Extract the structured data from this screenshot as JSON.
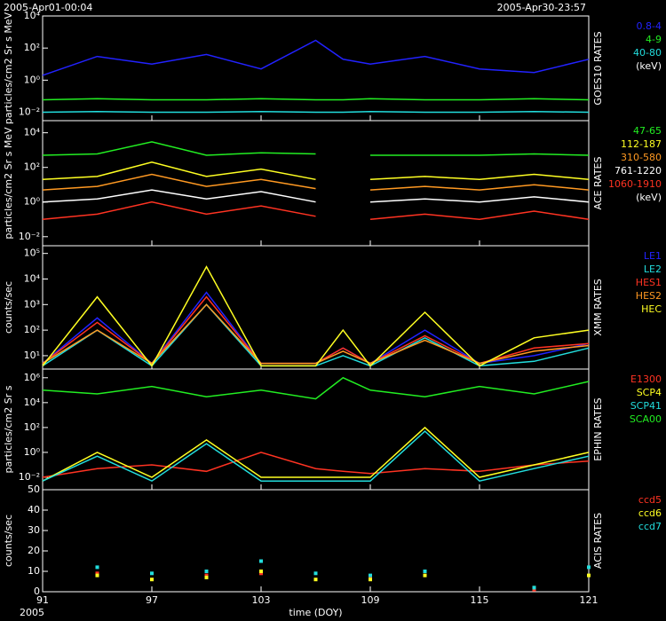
{
  "header": {
    "start": "2005-Apr01-00:04",
    "end": "2005-Apr30-23:57"
  },
  "footer": {
    "year": "2005"
  },
  "chart_data": [
    {
      "type": "line",
      "title": "GOES10 RATES",
      "ylabel": "particles/cm2 Sr s MeV",
      "unit": "(keV)",
      "log": true,
      "xlim": [
        91,
        121
      ],
      "xticks": [
        91,
        97,
        103,
        109,
        115,
        121
      ],
      "ylim": [
        0.003,
        10000
      ],
      "yticks": [
        {
          "value": 0.01,
          "label": "10⁻²"
        },
        {
          "value": 1,
          "label": "10⁰"
        },
        {
          "value": 100,
          "label": "10²"
        },
        {
          "value": 10000,
          "label": "10⁴"
        }
      ],
      "x": [
        91,
        94,
        97,
        100,
        103,
        106,
        107.5,
        109,
        112,
        115,
        118,
        121
      ],
      "series": [
        {
          "name": "0.8-4",
          "color": "#2222ff",
          "values": [
            2,
            30,
            10,
            40,
            5,
            300,
            20,
            10,
            30,
            5,
            3,
            20
          ]
        },
        {
          "name": "4-9",
          "color": "#22ee22",
          "values": [
            0.06,
            0.07,
            0.06,
            0.06,
            0.07,
            0.06,
            0.06,
            0.07,
            0.06,
            0.06,
            0.07,
            0.06
          ]
        },
        {
          "name": "40-80",
          "color": "#22dddd",
          "values": [
            0.01,
            0.011,
            0.01,
            0.01,
            0.011,
            0.01,
            0.01,
            0.011,
            0.01,
            0.01,
            0.011,
            0.01
          ]
        }
      ]
    },
    {
      "type": "line",
      "title": "ACE RATES",
      "ylabel": "particles/cm2 Sr s MeV",
      "unit": "(keV)",
      "log": true,
      "xlim": [
        91,
        121
      ],
      "xticks": [
        91,
        97,
        103,
        109,
        115,
        121
      ],
      "ylim": [
        0.003,
        50000
      ],
      "yticks": [
        {
          "value": 0.01,
          "label": "10⁻²"
        },
        {
          "value": 1,
          "label": "10⁰"
        },
        {
          "value": 100,
          "label": "10²"
        },
        {
          "value": 10000,
          "label": "10⁴"
        }
      ],
      "x": [
        91,
        94,
        97,
        100,
        103,
        106,
        107.5,
        109,
        112,
        115,
        118,
        121
      ],
      "series": [
        {
          "name": "47-65",
          "color": "#22ee22",
          "values": [
            500,
            600,
            3000,
            500,
            700,
            600,
            null,
            500,
            500,
            500,
            600,
            500
          ]
        },
        {
          "name": "112-187",
          "color": "#ffff22",
          "values": [
            20,
            30,
            200,
            30,
            80,
            20,
            null,
            20,
            30,
            20,
            40,
            20
          ]
        },
        {
          "name": "310-580",
          "color": "#ff9922",
          "values": [
            5,
            8,
            40,
            8,
            20,
            6,
            null,
            5,
            8,
            5,
            10,
            5
          ]
        },
        {
          "name": "761-1220",
          "color": "#ffffff",
          "values": [
            1,
            1.5,
            5,
            1.5,
            4,
            1,
            null,
            1,
            1.5,
            1,
            2,
            1
          ]
        },
        {
          "name": "1060-1910",
          "color": "#ff3322",
          "values": [
            0.1,
            0.2,
            1,
            0.2,
            0.6,
            0.15,
            null,
            0.1,
            0.2,
            0.1,
            0.3,
            0.1
          ]
        }
      ]
    },
    {
      "type": "line",
      "title": "XMM RATES",
      "ylabel": "counts/sec",
      "log": true,
      "xlim": [
        91,
        121
      ],
      "xticks": [
        91,
        97,
        103,
        109,
        115,
        121
      ],
      "ylim": [
        3,
        200000
      ],
      "yticks": [
        {
          "value": 10,
          "label": "10¹"
        },
        {
          "value": 100,
          "label": "10²"
        },
        {
          "value": 1000,
          "label": "10³"
        },
        {
          "value": 10000,
          "label": "10⁴"
        },
        {
          "value": 100000,
          "label": "10⁵"
        }
      ],
      "x": [
        91,
        94,
        97,
        100,
        103,
        106,
        107.5,
        109,
        112,
        115,
        118,
        121
      ],
      "series": [
        {
          "name": "LE1",
          "color": "#2222ff",
          "values": [
            5,
            300,
            5,
            3000,
            5,
            5,
            20,
            5,
            100,
            5,
            10,
            30
          ]
        },
        {
          "name": "LE2",
          "color": "#22dddd",
          "values": [
            4,
            100,
            4,
            1000,
            4,
            4,
            10,
            4,
            50,
            4,
            6,
            20
          ]
        },
        {
          "name": "HES1",
          "color": "#ff3322",
          "values": [
            5,
            200,
            5,
            2000,
            5,
            5,
            20,
            5,
            60,
            5,
            20,
            30
          ]
        },
        {
          "name": "HES2",
          "color": "#ff9922",
          "values": [
            5,
            100,
            5,
            1000,
            5,
            5,
            15,
            5,
            40,
            5,
            15,
            25
          ]
        },
        {
          "name": "HEC",
          "color": "#ffff22",
          "values": [
            4,
            2000,
            4,
            30000,
            4,
            4,
            100,
            4,
            500,
            4,
            50,
            100
          ]
        }
      ]
    },
    {
      "type": "line",
      "title": "EPHIN RATES",
      "ylabel": "particles/cm2 Sr s",
      "log": true,
      "xlim": [
        91,
        121
      ],
      "xticks": [
        91,
        97,
        103,
        109,
        115,
        121
      ],
      "ylim": [
        0.001,
        5000000
      ],
      "yticks": [
        {
          "value": 0.01,
          "label": "10⁻²"
        },
        {
          "value": 1,
          "label": "10⁰"
        },
        {
          "value": 100,
          "label": "10²"
        },
        {
          "value": 10000,
          "label": "10⁴"
        },
        {
          "value": 1000000,
          "label": "10⁶"
        }
      ],
      "x": [
        91,
        94,
        97,
        100,
        103,
        106,
        107.5,
        109,
        112,
        115,
        118,
        121
      ],
      "series": [
        {
          "name": "E1300",
          "color": "#ff3322",
          "values": [
            0.01,
            0.05,
            0.1,
            0.03,
            1,
            0.05,
            0.03,
            0.02,
            0.05,
            0.03,
            0.1,
            0.2
          ]
        },
        {
          "name": "SCP4",
          "color": "#ffff22",
          "values": [
            0.005,
            1,
            0.01,
            10,
            0.01,
            0.01,
            0.01,
            0.01,
            100,
            0.01,
            0.1,
            1
          ]
        },
        {
          "name": "SCP41",
          "color": "#22dddd",
          "values": [
            0.005,
            0.5,
            0.005,
            5,
            0.005,
            0.005,
            0.005,
            0.005,
            50,
            0.005,
            0.05,
            0.5
          ]
        },
        {
          "name": "SCA00",
          "color": "#22ee22",
          "values": [
            100000,
            50000,
            200000,
            30000,
            100000,
            20000,
            1000000,
            100000,
            30000,
            200000,
            50000,
            500000
          ]
        }
      ]
    },
    {
      "type": "scatter",
      "title": "ACIS RATES",
      "ylabel": "counts/sec",
      "xlabel": "time (DOY)",
      "log": false,
      "xlim": [
        91,
        121
      ],
      "xticks": [
        91,
        97,
        103,
        109,
        115,
        121
      ],
      "ylim": [
        0,
        50
      ],
      "yticks": [
        0,
        10,
        20,
        30,
        40,
        50
      ],
      "x": [
        91,
        94,
        97,
        100,
        103,
        106,
        107.5,
        109,
        112,
        115,
        118,
        121
      ],
      "series": [
        {
          "name": "ccd5",
          "color": "#ff3322",
          "values": [
            null,
            9,
            null,
            8,
            9,
            null,
            null,
            7,
            null,
            null,
            1,
            null
          ]
        },
        {
          "name": "ccd6",
          "color": "#ffff22",
          "values": [
            null,
            8,
            6,
            7,
            10,
            6,
            null,
            6,
            8,
            null,
            2,
            8
          ]
        },
        {
          "name": "ccd7",
          "color": "#22dddd",
          "values": [
            null,
            12,
            9,
            10,
            15,
            9,
            null,
            8,
            10,
            null,
            2,
            12
          ]
        }
      ]
    }
  ]
}
